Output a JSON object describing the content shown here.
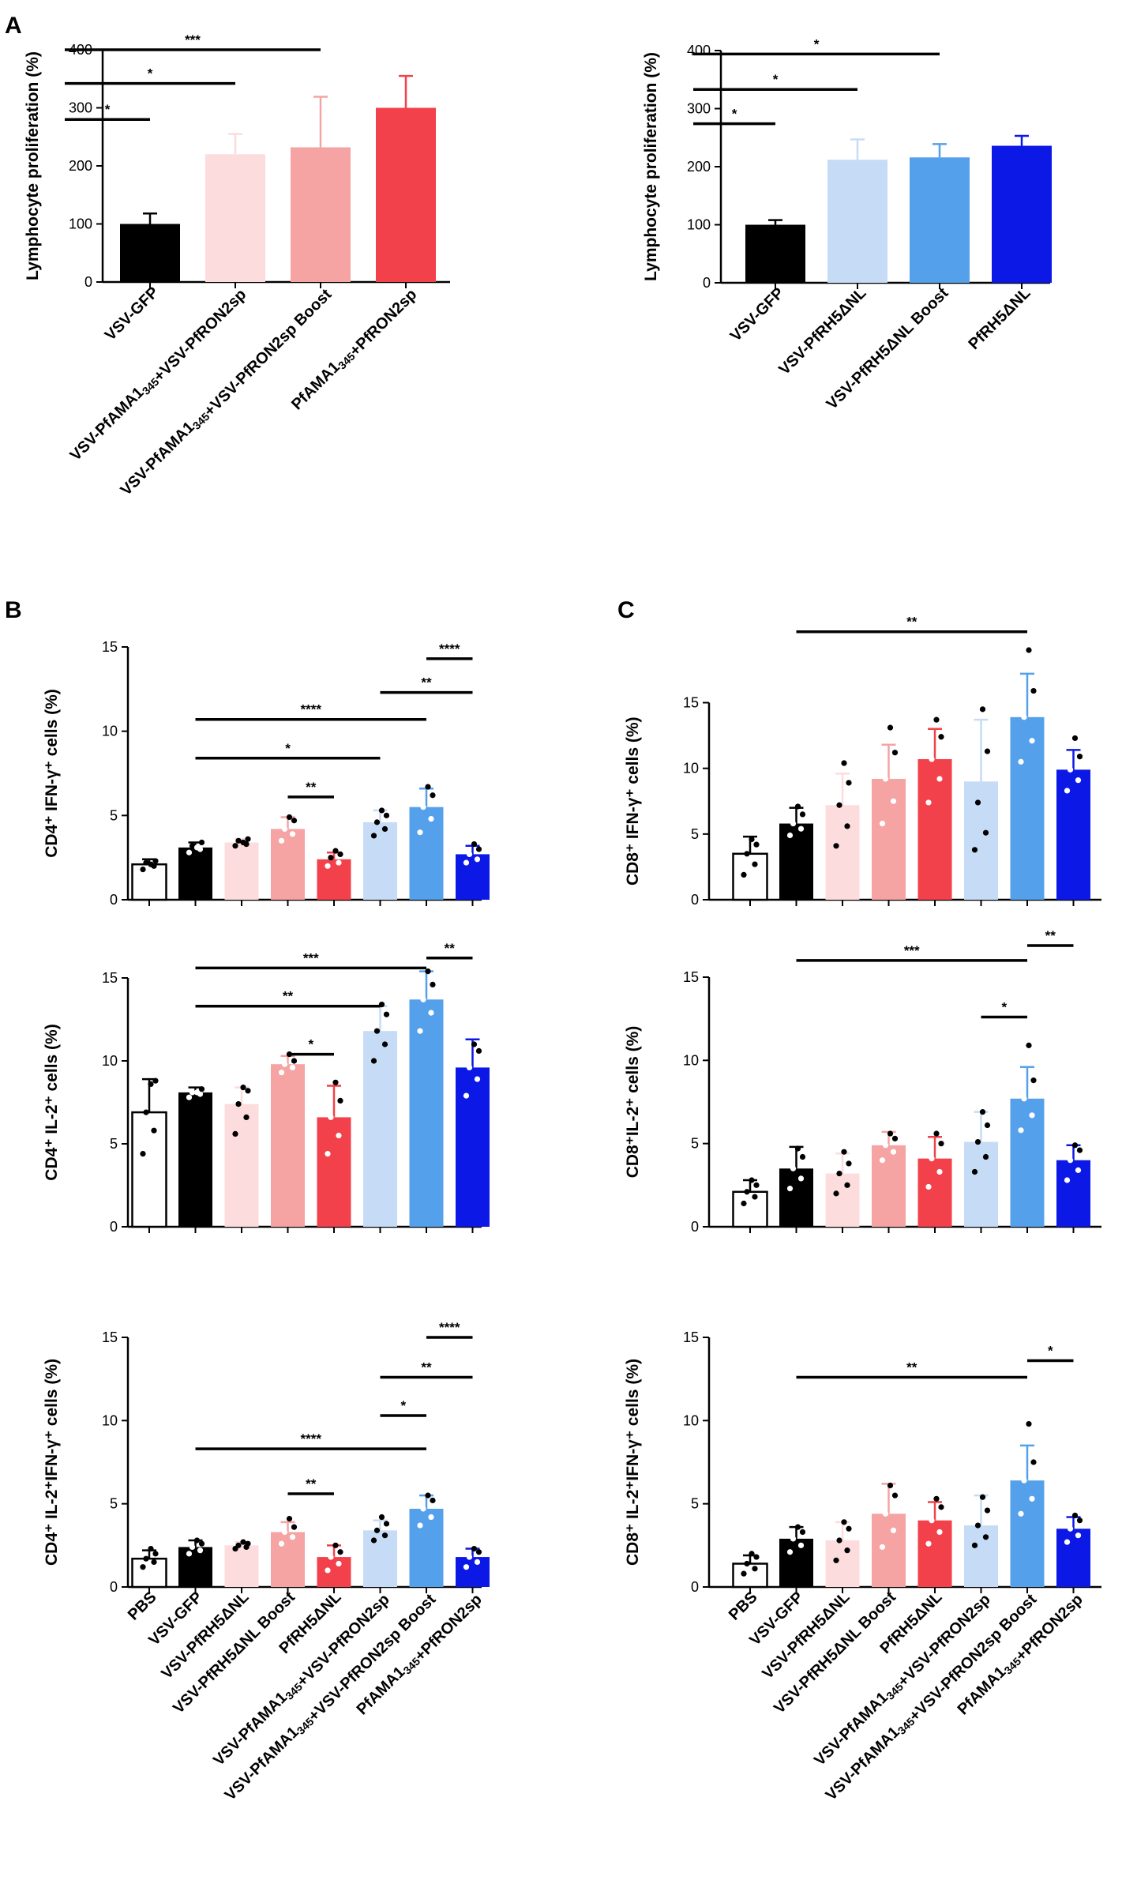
{
  "panels": {
    "a": "A",
    "b": "B",
    "c": "C"
  },
  "colors": {
    "black": "#000000",
    "light_pink": "#fcdcdc",
    "pink": "#f5a3a3",
    "red": "#f2414a",
    "light_blue": "#c6dbf5",
    "blue": "#55a0ea",
    "dark_blue": "#0c18e6",
    "white": "#ffffff"
  },
  "chart_data": [
    {
      "id": "A1",
      "panel": "A",
      "type": "bar",
      "ylabel": "Lymphocyte proliferation (%)",
      "ylim": [
        0,
        400
      ],
      "yticks": [
        "0",
        "100",
        "200",
        "300",
        "400"
      ],
      "ytick_values": [
        0,
        100,
        200,
        300,
        400
      ],
      "categories": [
        "VSV-GFP",
        "VSV-PfAMA1₃₄₅+VSV-PfRON2sp",
        "VSV-PfAMA1₃₄₅+VSV-PfRON2sp Boost",
        "PfAMA1₃₄₅+PfRON2sp"
      ],
      "colors": [
        "black",
        "light_pink",
        "pink",
        "red"
      ],
      "values": [
        100,
        220,
        232,
        300
      ],
      "errors": [
        18,
        35,
        87,
        55
      ],
      "points": [],
      "significance": [
        {
          "from": 0,
          "to": 3,
          "label": "***",
          "y": 400
        },
        {
          "from": 0,
          "to": 2,
          "label": "*",
          "y": 342
        },
        {
          "from": 0,
          "to": 1,
          "label": "*",
          "y": 280
        }
      ]
    },
    {
      "id": "A2",
      "panel": "A",
      "type": "bar",
      "ylabel": "Lymphocyte proliferation (%)",
      "ylim": [
        0,
        400
      ],
      "yticks": [
        "0",
        "100",
        "200",
        "300",
        "400"
      ],
      "ytick_values": [
        0,
        100,
        200,
        300,
        400
      ],
      "categories": [
        "VSV-GFP",
        "VSV-PfRH5ΔNL",
        "VSV-PfRH5ΔNL Boost",
        "PfRH5ΔNL"
      ],
      "colors": [
        "black",
        "light_blue",
        "blue",
        "dark_blue"
      ],
      "values": [
        100,
        212,
        216,
        236
      ],
      "errors": [
        8,
        35,
        23,
        17
      ],
      "points": [],
      "significance": [
        {
          "from": 0,
          "to": 3,
          "label": "*",
          "y": 394
        },
        {
          "from": 0,
          "to": 2,
          "label": "*",
          "y": 333
        },
        {
          "from": 0,
          "to": 1,
          "label": "*",
          "y": 274
        }
      ]
    },
    {
      "id": "B1",
      "panel": "B",
      "type": "bar",
      "ylabel": "CD4⁺ IFN-γ⁺ cells (%)",
      "ylim": [
        0,
        15
      ],
      "yticks": [
        "0",
        "5",
        "10",
        "15"
      ],
      "ytick_values": [
        0,
        5,
        10,
        15
      ],
      "categories": [
        "PBS",
        "VSV-GFP",
        "VSV-PfRH5ΔNL",
        "VSV-PfRH5ΔNL Boost",
        "PfRH5ΔNL",
        "VSV-PfAMA1₃₄₅+VSV-PfRON2sp",
        "VSV-PfAMA1₃₄₅+VSV-PfRON2sp Boost",
        "PfAMA1₃₄₅+PfRON2sp"
      ],
      "colors": [
        "white",
        "black",
        "light_pink",
        "pink",
        "red",
        "light_blue",
        "blue",
        "dark_blue"
      ],
      "values": [
        2.1,
        3.1,
        3.4,
        4.2,
        2.4,
        4.6,
        5.5,
        2.7
      ],
      "errors": [
        0.3,
        0.3,
        0.2,
        0.7,
        0.4,
        0.7,
        1.1,
        0.5
      ],
      "points": [
        [
          1.8,
          2.0,
          2.2,
          2.3,
          2.1
        ],
        [
          2.8,
          3.0,
          3.2,
          3.4,
          3.1
        ],
        [
          3.2,
          3.3,
          3.5,
          3.6,
          3.4
        ],
        [
          3.5,
          3.9,
          4.2,
          4.7,
          4.9
        ],
        [
          2.0,
          2.2,
          2.5,
          2.7,
          2.9
        ],
        [
          3.8,
          4.2,
          4.6,
          5.0,
          5.3
        ],
        [
          4.0,
          4.8,
          5.5,
          6.2,
          6.7
        ],
        [
          2.2,
          2.4,
          2.7,
          3.0,
          3.3
        ]
      ],
      "significance": [
        {
          "from": 7,
          "to": 8,
          "label": "****",
          "y": 14.3
        },
        {
          "from": 6,
          "to": 8,
          "label": "**",
          "y": 12.3
        },
        {
          "from": 2,
          "to": 7,
          "label": "****",
          "y": 10.7
        },
        {
          "from": 2,
          "to": 6,
          "label": "*",
          "y": 8.4
        },
        {
          "from": 4,
          "to": 5,
          "label": "**",
          "y": 6.1
        }
      ]
    },
    {
      "id": "B2",
      "panel": "B",
      "type": "bar",
      "ylabel": "CD4⁺ IL-2⁺ cells (%)",
      "ylim": [
        0,
        15
      ],
      "yticks": [
        "0",
        "5",
        "10",
        "15"
      ],
      "ytick_values": [
        0,
        5,
        10,
        15
      ],
      "categories": [
        "PBS",
        "VSV-GFP",
        "VSV-PfRH5ΔNL",
        "VSV-PfRH5ΔNL Boost",
        "PfRH5ΔNL",
        "VSV-PfAMA1₃₄₅+VSV-PfRON2sp",
        "VSV-PfAMA1₃₄₅+VSV-PfRON2sp Boost",
        "PfAMA1₃₄₅+PfRON2sp"
      ],
      "colors": [
        "white",
        "black",
        "light_pink",
        "pink",
        "red",
        "light_blue",
        "blue",
        "dark_blue"
      ],
      "values": [
        6.9,
        8.1,
        7.4,
        9.8,
        6.6,
        11.8,
        13.7,
        9.6
      ],
      "errors": [
        2.0,
        0.3,
        1.0,
        0.5,
        1.9,
        1.5,
        1.7,
        1.7
      ],
      "points": [
        [
          4.4,
          5.8,
          6.9,
          8.8,
          8.6
        ],
        [
          7.8,
          8.0,
          8.1,
          8.3,
          8.1
        ],
        [
          5.6,
          6.6,
          7.4,
          8.2,
          8.4
        ],
        [
          9.3,
          9.6,
          9.8,
          10.0,
          10.4
        ],
        [
          4.4,
          5.5,
          6.6,
          7.6,
          8.7
        ],
        [
          10.0,
          11.0,
          11.8,
          12.8,
          13.4
        ],
        [
          11.8,
          12.9,
          13.7,
          14.6,
          15.4
        ],
        [
          7.9,
          8.9,
          9.6,
          10.6,
          11.0
        ]
      ],
      "significance": [
        {
          "from": 7,
          "to": 8,
          "label": "**",
          "y": 16.2
        },
        {
          "from": 2,
          "to": 7,
          "label": "***",
          "y": 15.6
        },
        {
          "from": 2,
          "to": 6,
          "label": "**",
          "y": 13.3
        },
        {
          "from": 4,
          "to": 5,
          "label": "*",
          "y": 10.4
        }
      ]
    },
    {
      "id": "B3",
      "panel": "B",
      "type": "bar",
      "ylabel": "CD4⁺ IL-2⁺IFN-γ⁺ cells (%)",
      "ylim": [
        0,
        15
      ],
      "yticks": [
        "0",
        "5",
        "10",
        "15"
      ],
      "ytick_values": [
        0,
        5,
        10,
        15
      ],
      "categories": [
        "PBS",
        "VSV-GFP",
        "VSV-PfRH5ΔNL",
        "VSV-PfRH5ΔNL Boost",
        "PfRH5ΔNL",
        "VSV-PfAMA1₃₄₅+VSV-PfRON2sp",
        "VSV-PfAMA1₃₄₅+VSV-PfRON2sp Boost",
        "PfAMA1₃₄₅+PfRON2sp"
      ],
      "colors": [
        "white",
        "black",
        "light_pink",
        "pink",
        "red",
        "light_blue",
        "blue",
        "dark_blue"
      ],
      "values": [
        1.7,
        2.4,
        2.5,
        3.3,
        1.8,
        3.4,
        4.7,
        1.8
      ],
      "errors": [
        0.5,
        0.4,
        0.2,
        0.6,
        0.7,
        0.6,
        0.8,
        0.5
      ],
      "points": [
        [
          1.2,
          1.5,
          1.7,
          2.0,
          2.3
        ],
        [
          2.0,
          2.2,
          2.4,
          2.6,
          2.8
        ],
        [
          2.3,
          2.4,
          2.5,
          2.6,
          2.7
        ],
        [
          2.6,
          3.0,
          3.3,
          3.6,
          4.1
        ],
        [
          1.0,
          1.4,
          1.8,
          2.1,
          2.5
        ],
        [
          2.8,
          3.1,
          3.4,
          3.8,
          4.2
        ],
        [
          3.7,
          4.2,
          4.7,
          5.2,
          5.5
        ],
        [
          1.2,
          1.5,
          1.8,
          2.1,
          2.3
        ]
      ],
      "significance": [
        {
          "from": 7,
          "to": 8,
          "label": "****",
          "y": 15.0
        },
        {
          "from": 6,
          "to": 8,
          "label": "**",
          "y": 12.6
        },
        {
          "from": 6,
          "to": 7,
          "label": "*",
          "y": 10.3
        },
        {
          "from": 2,
          "to": 7,
          "label": "****",
          "y": 8.3
        },
        {
          "from": 4,
          "to": 5,
          "label": "**",
          "y": 5.6
        }
      ]
    },
    {
      "id": "C1",
      "panel": "C",
      "type": "bar",
      "ylabel": "CD8⁺ IFN-γ⁺ cells (%)",
      "ylim": [
        0,
        19
      ],
      "yticks": [
        "0",
        "5",
        "10",
        "15"
      ],
      "ytick_values": [
        0,
        5,
        10,
        15
      ],
      "categories": [
        "PBS",
        "VSV-GFP",
        "VSV-PfRH5ΔNL",
        "VSV-PfRH5ΔNL Boost",
        "PfRH5ΔNL",
        "VSV-PfAMA1₃₄₅+VSV-PfRON2sp",
        "VSV-PfAMA1₃₄₅+VSV-PfRON2sp Boost",
        "PfAMA1₃₄₅+PfRON2sp"
      ],
      "colors": [
        "white",
        "black",
        "light_pink",
        "pink",
        "red",
        "light_blue",
        "blue",
        "dark_blue"
      ],
      "values": [
        3.5,
        5.8,
        7.2,
        9.2,
        10.7,
        9.0,
        13.9,
        9.9
      ],
      "errors": [
        1.3,
        1.2,
        2.4,
        2.6,
        2.3,
        4.7,
        3.3,
        1.5
      ],
      "points": [
        [
          1.9,
          2.7,
          3.5,
          4.2,
          4.6
        ],
        [
          4.9,
          5.4,
          5.8,
          6.5,
          7.1
        ],
        [
          4.1,
          5.6,
          7.2,
          8.9,
          10.4
        ],
        [
          5.8,
          7.5,
          9.2,
          11.2,
          13.1
        ],
        [
          7.4,
          9.2,
          10.7,
          12.4,
          13.7
        ],
        [
          3.8,
          5.1,
          7.4,
          11.3,
          14.5
        ],
        [
          10.5,
          12.1,
          13.9,
          15.9,
          19.0
        ],
        [
          8.3,
          9.1,
          9.9,
          10.9,
          12.3
        ]
      ],
      "significance": [
        {
          "from": 2,
          "to": 7,
          "label": "**",
          "y": 20.4
        }
      ]
    },
    {
      "id": "C2",
      "panel": "C",
      "type": "bar",
      "ylabel": "CD8⁺IL-2⁺ cells (%)",
      "ylim": [
        0,
        15
      ],
      "yticks": [
        "0",
        "5",
        "10",
        "15"
      ],
      "ytick_values": [
        0,
        5,
        10,
        15
      ],
      "categories": [
        "PBS",
        "VSV-GFP",
        "VSV-PfRH5ΔNL",
        "VSV-PfRH5ΔNL Boost",
        "PfRH5ΔNL",
        "VSV-PfAMA1₃₄₅+VSV-PfRON2sp",
        "VSV-PfAMA1₃₄₅+VSV-PfRON2sp Boost",
        "PfAMA1₃₄₅+PfRON2sp"
      ],
      "colors": [
        "white",
        "black",
        "light_pink",
        "pink",
        "red",
        "light_blue",
        "blue",
        "dark_blue"
      ],
      "values": [
        2.1,
        3.5,
        3.2,
        4.9,
        4.1,
        5.1,
        7.7,
        4.0
      ],
      "errors": [
        0.7,
        1.3,
        1.2,
        0.8,
        1.3,
        1.8,
        1.9,
        0.9
      ],
      "points": [
        [
          1.4,
          1.8,
          2.1,
          2.5,
          2.8
        ],
        [
          2.3,
          2.9,
          3.5,
          4.2,
          4.7
        ],
        [
          2.0,
          2.5,
          3.2,
          3.8,
          4.5
        ],
        [
          4.0,
          4.5,
          4.9,
          5.3,
          5.6
        ],
        [
          2.4,
          3.3,
          4.1,
          5.0,
          5.6
        ],
        [
          3.3,
          4.2,
          5.1,
          6.1,
          6.9
        ],
        [
          5.8,
          6.7,
          7.7,
          8.8,
          10.9
        ],
        [
          2.8,
          3.4,
          4.0,
          4.6,
          4.9
        ]
      ],
      "significance": [
        {
          "from": 7,
          "to": 8,
          "label": "**",
          "y": 16.9
        },
        {
          "from": 2,
          "to": 7,
          "label": "***",
          "y": 16.0
        },
        {
          "from": 6,
          "to": 7,
          "label": "*",
          "y": 12.6
        }
      ]
    },
    {
      "id": "C3",
      "panel": "C",
      "type": "bar",
      "ylabel": "CD8⁺ IL-2⁺IFN-γ⁺ cells (%)",
      "ylim": [
        0,
        15
      ],
      "yticks": [
        "0",
        "5",
        "10",
        "15"
      ],
      "ytick_values": [
        0,
        5,
        10,
        15
      ],
      "categories": [
        "PBS",
        "VSV-GFP",
        "VSV-PfRH5ΔNL",
        "VSV-PfRH5ΔNL Boost",
        "PfRH5ΔNL",
        "VSV-PfAMA1₃₄₅+VSV-PfRON2sp",
        "VSV-PfAMA1₃₄₅+VSV-PfRON2sp Boost",
        "PfAMA1₃₄₅+PfRON2sp"
      ],
      "colors": [
        "white",
        "black",
        "light_pink",
        "pink",
        "red",
        "light_blue",
        "blue",
        "dark_blue"
      ],
      "values": [
        1.4,
        2.9,
        2.8,
        4.4,
        4.0,
        3.7,
        6.4,
        3.5
      ],
      "errors": [
        0.5,
        0.7,
        1.1,
        1.8,
        1.1,
        1.8,
        2.1,
        0.7
      ],
      "points": [
        [
          0.8,
          1.1,
          1.4,
          1.8,
          2.0
        ],
        [
          2.1,
          2.5,
          2.9,
          3.3,
          3.6
        ],
        [
          1.6,
          2.2,
          2.8,
          3.5,
          3.9
        ],
        [
          2.4,
          3.4,
          4.4,
          5.5,
          6.1
        ],
        [
          2.6,
          3.3,
          4.0,
          4.8,
          5.3
        ],
        [
          2.5,
          3.0,
          3.7,
          4.6,
          5.4
        ],
        [
          4.4,
          5.3,
          6.4,
          7.5,
          9.8
        ],
        [
          2.7,
          3.1,
          3.5,
          4.0,
          4.3
        ]
      ],
      "significance": [
        {
          "from": 7,
          "to": 8,
          "label": "*",
          "y": 13.6
        },
        {
          "from": 2,
          "to": 7,
          "label": "**",
          "y": 12.6
        }
      ]
    }
  ]
}
